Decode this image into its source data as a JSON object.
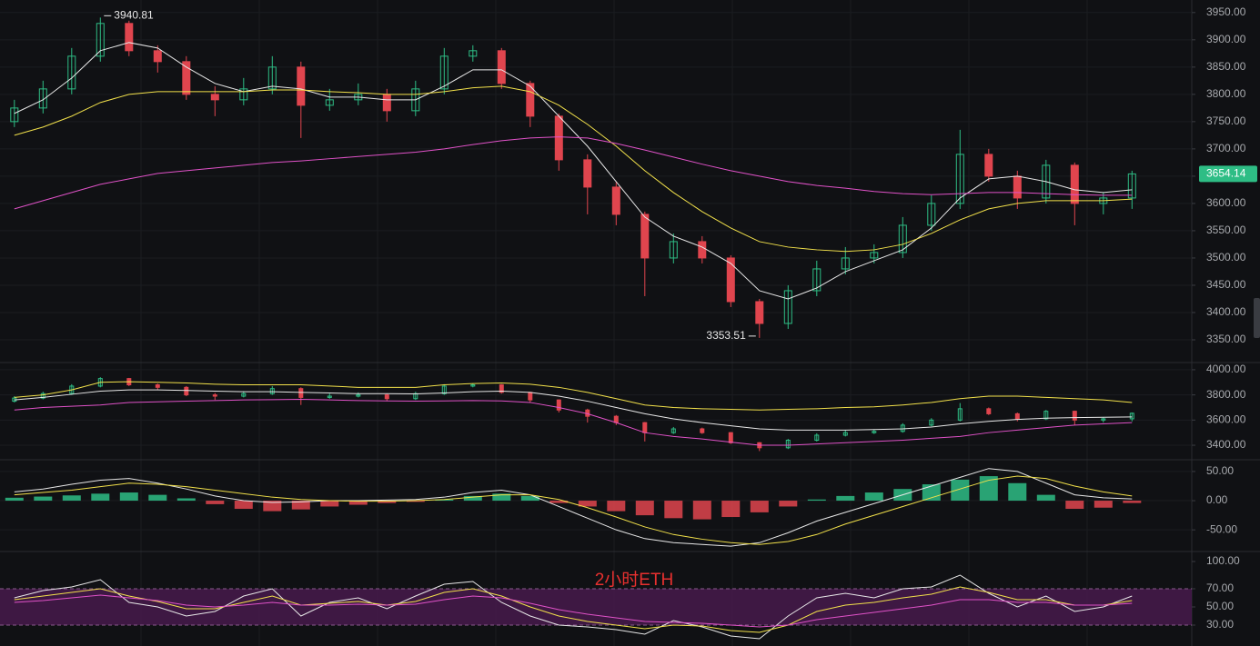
{
  "chart_data": [
    {
      "type": "candlestick",
      "open": [
        3750,
        3775,
        3810,
        3870,
        3930,
        3880,
        3860,
        3800,
        3790,
        3810,
        3850,
        3780,
        3790,
        3800,
        3770,
        3810,
        3870,
        3880,
        3820,
        3760,
        3680,
        3630,
        3580,
        3500,
        3530,
        3500,
        3420,
        3380,
        3440,
        3480,
        3500,
        3510,
        3560,
        3600,
        3690,
        3650,
        3610,
        3670,
        3600,
        3610
      ],
      "high": [
        3790,
        3825,
        3885,
        3940.81,
        3935,
        3890,
        3870,
        3815,
        3830,
        3870,
        3860,
        3810,
        3820,
        3810,
        3825,
        3885,
        3890,
        3885,
        3825,
        3765,
        3690,
        3640,
        3585,
        3545,
        3540,
        3505,
        3425,
        3450,
        3495,
        3520,
        3525,
        3575,
        3615,
        3735,
        3700,
        3660,
        3680,
        3675,
        3620,
        3660
      ],
      "low": [
        3740,
        3765,
        3800,
        3860,
        3870,
        3840,
        3790,
        3760,
        3780,
        3800,
        3720,
        3770,
        3780,
        3750,
        3760,
        3800,
        3860,
        3810,
        3740,
        3660,
        3580,
        3560,
        3430,
        3490,
        3490,
        3410,
        3353.51,
        3370,
        3430,
        3470,
        3490,
        3500,
        3550,
        3590,
        3640,
        3590,
        3600,
        3560,
        3580,
        3590
      ],
      "close": [
        3775,
        3810,
        3870,
        3930,
        3880,
        3860,
        3800,
        3790,
        3810,
        3850,
        3780,
        3790,
        3800,
        3770,
        3810,
        3870,
        3880,
        3820,
        3760,
        3680,
        3630,
        3580,
        3500,
        3530,
        3500,
        3420,
        3380,
        3440,
        3480,
        3500,
        3510,
        3560,
        3600,
        3690,
        3650,
        3610,
        3670,
        3600,
        3610,
        3654.14
      ],
      "up_color": "#2ebd85",
      "down_color": "#e0454e",
      "series": [
        {
          "color": "#e8e8e8",
          "values": [
            3765,
            3790,
            3830,
            3880,
            3895,
            3885,
            3850,
            3820,
            3805,
            3815,
            3810,
            3795,
            3795,
            3790,
            3790,
            3815,
            3845,
            3845,
            3815,
            3760,
            3705,
            3640,
            3575,
            3540,
            3520,
            3490,
            3440,
            3425,
            3445,
            3475,
            3495,
            3515,
            3555,
            3610,
            3645,
            3650,
            3640,
            3625,
            3620,
            3625
          ]
        },
        {
          "color": "#f2e14b",
          "values": [
            3725,
            3740,
            3760,
            3785,
            3800,
            3805,
            3805,
            3805,
            3805,
            3808,
            3808,
            3805,
            3803,
            3800,
            3800,
            3805,
            3812,
            3815,
            3805,
            3780,
            3745,
            3705,
            3660,
            3620,
            3585,
            3555,
            3530,
            3520,
            3515,
            3512,
            3515,
            3525,
            3545,
            3570,
            3590,
            3600,
            3605,
            3605,
            3605,
            3608
          ]
        },
        {
          "color": "#e052c8",
          "values": [
            3590,
            3605,
            3620,
            3635,
            3645,
            3655,
            3660,
            3665,
            3670,
            3675,
            3678,
            3682,
            3686,
            3690,
            3694,
            3700,
            3708,
            3715,
            3720,
            3722,
            3720,
            3710,
            3698,
            3685,
            3672,
            3660,
            3650,
            3640,
            3633,
            3628,
            3622,
            3618,
            3616,
            3618,
            3620,
            3620,
            3618,
            3616,
            3615,
            3615
          ]
        }
      ],
      "ylim": [
        3310,
        3973
      ],
      "yticks": [
        {
          "value": 3350,
          "label": "3350.00"
        },
        {
          "value": 3400,
          "label": "3400.00"
        },
        {
          "value": 3450,
          "label": "3450.00"
        },
        {
          "value": 3500,
          "label": "3500.00"
        },
        {
          "value": 3550,
          "label": "3550.00"
        },
        {
          "value": 3600,
          "label": "3600.00"
        },
        {
          "value": 3650,
          "label": "3650.00"
        },
        {
          "value": 3700,
          "label": "3700.00"
        },
        {
          "value": 3750,
          "label": "3750.00"
        },
        {
          "value": 3800,
          "label": "3800.00"
        },
        {
          "value": 3850,
          "label": "3850.00"
        },
        {
          "value": 3900,
          "label": "3900.00"
        },
        {
          "value": 3950,
          "label": "3950.00"
        }
      ],
      "grid": true,
      "last_price_color": "#2ebd85"
    },
    {
      "type": "line",
      "overlay_candles": true,
      "series": [
        {
          "color": "#f2e14b",
          "values": [
            3780,
            3800,
            3840,
            3900,
            3905,
            3900,
            3895,
            3885,
            3880,
            3880,
            3880,
            3870,
            3860,
            3860,
            3860,
            3880,
            3890,
            3895,
            3885,
            3860,
            3820,
            3770,
            3720,
            3700,
            3690,
            3685,
            3680,
            3685,
            3690,
            3700,
            3705,
            3720,
            3740,
            3770,
            3790,
            3790,
            3780,
            3770,
            3760,
            3740
          ]
        },
        {
          "color": "#e8e8e8",
          "values": [
            3760,
            3780,
            3805,
            3830,
            3840,
            3840,
            3835,
            3830,
            3825,
            3825,
            3820,
            3815,
            3810,
            3810,
            3808,
            3815,
            3825,
            3830,
            3820,
            3790,
            3750,
            3700,
            3650,
            3610,
            3580,
            3555,
            3530,
            3520,
            3520,
            3520,
            3525,
            3530,
            3545,
            3570,
            3590,
            3605,
            3615,
            3620,
            3622,
            3625
          ]
        },
        {
          "color": "#e052c8",
          "values": [
            3680,
            3700,
            3710,
            3720,
            3740,
            3745,
            3750,
            3755,
            3760,
            3762,
            3765,
            3760,
            3755,
            3752,
            3750,
            3752,
            3755,
            3752,
            3740,
            3700,
            3650,
            3580,
            3500,
            3470,
            3450,
            3425,
            3400,
            3400,
            3410,
            3420,
            3430,
            3440,
            3455,
            3470,
            3500,
            3520,
            3540,
            3560,
            3570,
            3580
          ]
        }
      ],
      "ylim": [
        3292,
        4050
      ],
      "yticks": [
        {
          "value": 3400,
          "label": "3400.00"
        },
        {
          "value": 3600,
          "label": "3600.00"
        },
        {
          "value": 3800,
          "label": "3800.00"
        },
        {
          "value": 4000,
          "label": "4000.00"
        }
      ],
      "grid": true
    },
    {
      "type": "bar",
      "values": [
        5,
        7,
        9,
        12,
        14,
        10,
        4,
        -6,
        -14,
        -18,
        -15,
        -10,
        -7,
        -4,
        -2,
        2,
        8,
        12,
        8,
        -4,
        -10,
        -18,
        -25,
        -30,
        -32,
        -28,
        -20,
        -10,
        2,
        8,
        14,
        20,
        28,
        36,
        42,
        30,
        10,
        -14,
        -12,
        -4
      ],
      "up_color": "#2ebd85",
      "down_color": "#e0454e",
      "series": [
        {
          "color": "#e8e8e8",
          "values": [
            15,
            20,
            28,
            35,
            38,
            30,
            20,
            8,
            0,
            -3,
            -2,
            0,
            0,
            1,
            2,
            6,
            14,
            18,
            10,
            -10,
            -30,
            -50,
            -65,
            -72,
            -75,
            -78,
            -72,
            -55,
            -35,
            -20,
            -5,
            10,
            25,
            40,
            55,
            50,
            30,
            10,
            5,
            3
          ]
        },
        {
          "color": "#f2e14b",
          "values": [
            10,
            14,
            18,
            24,
            30,
            28,
            24,
            18,
            12,
            6,
            2,
            0,
            -1,
            -1,
            0,
            2,
            6,
            10,
            10,
            2,
            -12,
            -28,
            -45,
            -58,
            -66,
            -72,
            -75,
            -70,
            -58,
            -40,
            -25,
            -10,
            5,
            20,
            35,
            42,
            38,
            25,
            15,
            8
          ]
        }
      ],
      "ylim": [
        -84,
        67
      ],
      "yticks": [
        {
          "value": -50,
          "label": "-50.00"
        },
        {
          "value": 0,
          "label": "0.00"
        },
        {
          "value": 50,
          "label": "50.00"
        }
      ],
      "grid": true
    },
    {
      "type": "line",
      "title": "2小时ETH",
      "title_color": "#e8302f",
      "band": [
        30,
        70
      ],
      "band_color": "#4a1a4f",
      "series": [
        {
          "color": "#e8e8e8",
          "values": [
            60,
            68,
            72,
            80,
            55,
            50,
            40,
            45,
            62,
            70,
            40,
            55,
            60,
            48,
            62,
            75,
            78,
            55,
            40,
            30,
            28,
            25,
            20,
            35,
            28,
            18,
            15,
            40,
            60,
            65,
            60,
            70,
            72,
            85,
            65,
            50,
            62,
            45,
            50,
            62
          ]
        },
        {
          "color": "#f2e14b",
          "values": [
            58,
            62,
            66,
            70,
            62,
            56,
            48,
            48,
            55,
            62,
            52,
            54,
            56,
            52,
            56,
            66,
            70,
            62,
            50,
            40,
            34,
            30,
            26,
            30,
            29,
            24,
            22,
            30,
            45,
            52,
            55,
            60,
            64,
            72,
            66,
            58,
            58,
            52,
            52,
            57
          ]
        },
        {
          "color": "#e052c8",
          "values": [
            55,
            57,
            60,
            63,
            60,
            57,
            52,
            50,
            52,
            55,
            52,
            52,
            53,
            52,
            53,
            58,
            62,
            60,
            54,
            47,
            42,
            38,
            34,
            33,
            32,
            30,
            28,
            30,
            36,
            40,
            44,
            48,
            52,
            58,
            58,
            55,
            55,
            52,
            52,
            54
          ]
        }
      ],
      "ylim": [
        7,
        110
      ],
      "yticks": [
        {
          "value": 30,
          "label": "30.00"
        },
        {
          "value": 50,
          "label": "50.00"
        },
        {
          "value": 70,
          "label": "70.00"
        },
        {
          "value": 100,
          "label": "100.00"
        }
      ],
      "grid": false
    }
  ]
}
